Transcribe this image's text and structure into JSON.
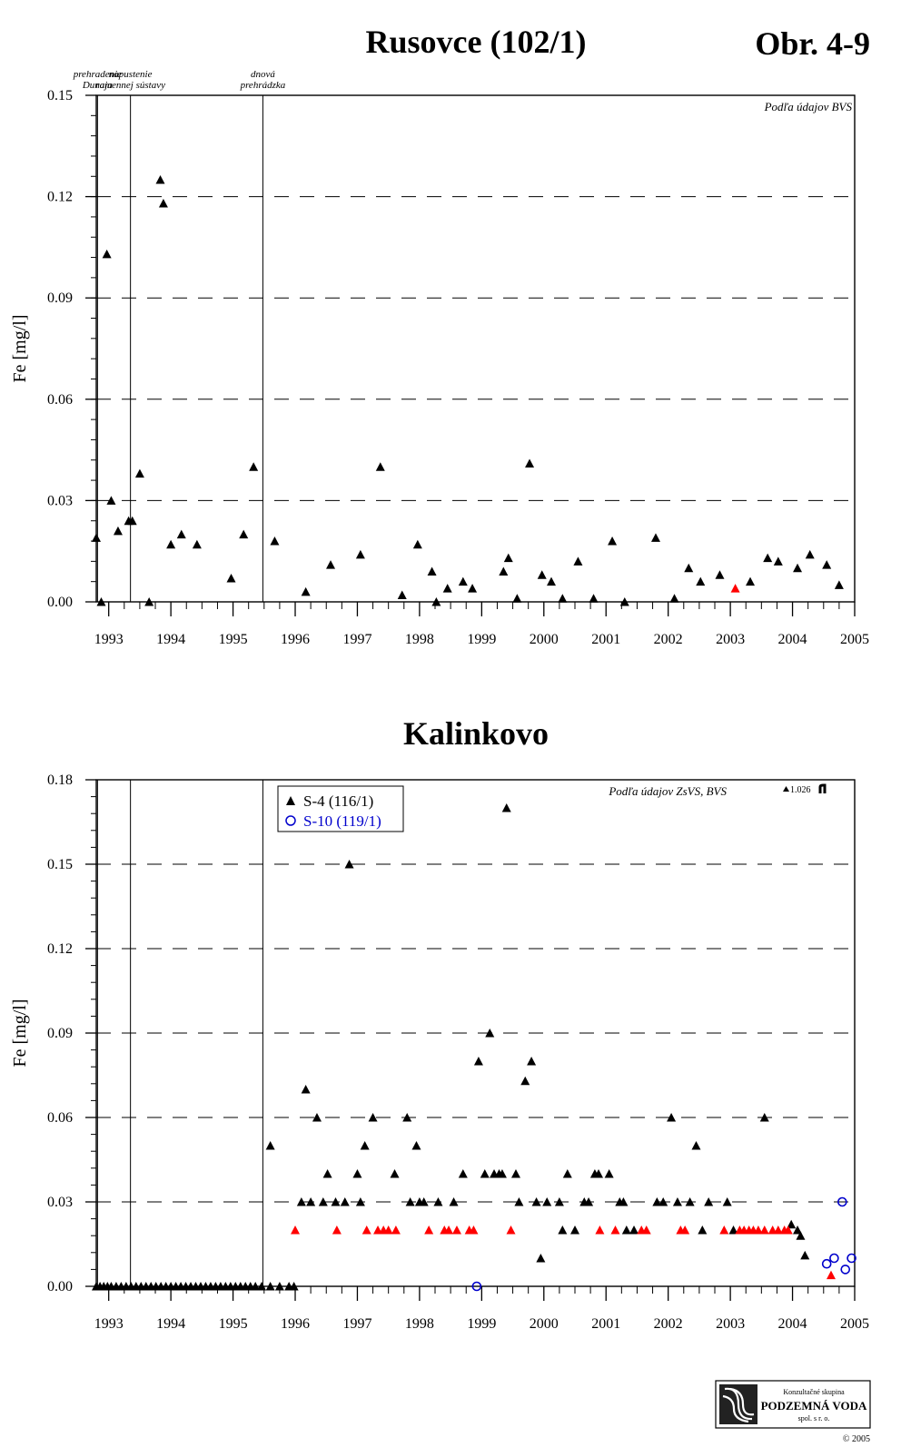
{
  "header": {
    "figure_label": "Obr. 4-9"
  },
  "colors": {
    "black": "#000000",
    "red": "#ff0000",
    "blue": "#0000cc"
  },
  "logo": {
    "line1": "Konzultačné skupina",
    "line2": "PODZEMNÁ VODA",
    "line3": "spol. s r. o.",
    "copyright": "© 2005",
    "icon": "company-logo-icon"
  },
  "chart_data": [
    {
      "type": "scatter",
      "title": "Rusovce (102/1)",
      "ylabel": "Fe [mg/l]",
      "xlabel": "",
      "source_note": "Podľa údajov BVS",
      "xlim": [
        1992.8,
        2005.0
      ],
      "ylim": [
        0,
        0.15
      ],
      "yticks": [
        "0.00",
        "0.03",
        "0.06",
        "0.09",
        "0.12",
        "0.15"
      ],
      "xticks": [
        "1993",
        "1994",
        "1995",
        "1996",
        "1997",
        "1998",
        "1999",
        "2000",
        "2001",
        "2002",
        "2003",
        "2004",
        "2005"
      ],
      "grid": "dashed horizontal",
      "events": [
        {
          "x": 1992.82,
          "label_lines": [
            "prehradenie",
            "Dunaja"
          ]
        },
        {
          "x": 1993.35,
          "label_lines": [
            "napustenie",
            "ramennej sústavy"
          ]
        },
        {
          "x": 1995.48,
          "label_lines": [
            "dnová",
            "prehrádzka"
          ]
        }
      ],
      "series": [
        {
          "marker": "triangle",
          "color": "#000000",
          "x": [
            1992.8,
            1992.88,
            1992.97,
            1993.04,
            1993.15,
            1993.32,
            1993.38,
            1993.5,
            1993.65,
            1993.83,
            1993.88,
            1994.0,
            1994.17,
            1994.42,
            1994.97,
            1995.17,
            1995.33,
            1995.67,
            1996.17,
            1996.57,
            1997.05,
            1997.37,
            1997.72,
            1997.97,
            1998.2,
            1998.27,
            1998.45,
            1998.7,
            1998.85,
            1999.35,
            1999.43,
            1999.57,
            1999.77,
            1999.97,
            2000.12,
            2000.3,
            2000.55,
            2000.8,
            2001.1,
            2001.3,
            2001.8,
            2002.1,
            2002.33,
            2002.52,
            2002.83,
            2003.32,
            2003.6,
            2003.77,
            2004.08,
            2004.28,
            2004.55,
            2004.75
          ],
          "y": [
            0.019,
            0.0,
            0.103,
            0.03,
            0.021,
            0.024,
            0.024,
            0.038,
            0.0,
            0.125,
            0.118,
            0.017,
            0.02,
            0.017,
            0.007,
            0.02,
            0.04,
            0.018,
            0.003,
            0.011,
            0.014,
            0.04,
            0.002,
            0.017,
            0.009,
            0.0,
            0.004,
            0.006,
            0.004,
            0.009,
            0.013,
            0.001,
            0.041,
            0.008,
            0.006,
            0.001,
            0.012,
            0.001,
            0.018,
            0.0,
            0.019,
            0.001,
            0.01,
            0.006,
            0.008,
            0.006,
            0.013,
            0.012,
            0.01,
            0.014,
            0.011,
            0.005
          ]
        },
        {
          "marker": "triangle",
          "color": "#ff0000",
          "x": [
            2003.08
          ],
          "y": [
            0.004
          ]
        }
      ]
    },
    {
      "type": "scatter",
      "title": "Kalinkovo",
      "ylabel": "Fe [mg/l]",
      "xlabel": "",
      "source_note": "Podľa údajov ZsVS, BVS",
      "outlier_note": "1.026",
      "xlim": [
        1992.8,
        2005.0
      ],
      "ylim": [
        0,
        0.18
      ],
      "yticks": [
        "0.00",
        "0.03",
        "0.06",
        "0.09",
        "0.12",
        "0.15",
        "0.18"
      ],
      "xticks": [
        "1993",
        "1994",
        "1995",
        "1996",
        "1997",
        "1998",
        "1999",
        "2000",
        "2001",
        "2002",
        "2003",
        "2004",
        "2005"
      ],
      "grid": "dashed horizontal",
      "events": [
        {
          "x": 1992.82,
          "label_lines": []
        },
        {
          "x": 1993.35,
          "label_lines": []
        },
        {
          "x": 1995.48,
          "label_lines": []
        }
      ],
      "legend": [
        {
          "label": "S-4 (116/1)",
          "marker": "triangle",
          "color": "#000000"
        },
        {
          "label": "S-10 (119/1)",
          "marker": "circle",
          "color": "#0000cc"
        }
      ],
      "series": [
        {
          "name": "S-4 (116/1)",
          "marker": "triangle",
          "color": "#000000",
          "x": [
            1992.8,
            1992.86,
            1992.92,
            1992.98,
            1993.04,
            1993.12,
            1993.2,
            1993.28,
            1993.36,
            1993.44,
            1993.52,
            1993.6,
            1993.68,
            1993.76,
            1993.84,
            1993.92,
            1994.0,
            1994.08,
            1994.16,
            1994.24,
            1994.32,
            1994.4,
            1994.48,
            1994.56,
            1994.64,
            1994.72,
            1994.8,
            1994.88,
            1994.96,
            1995.04,
            1995.12,
            1995.2,
            1995.28,
            1995.36,
            1995.46,
            1995.6,
            1995.75,
            1995.9,
            1995.98,
            1995.6,
            1996.1,
            1996.17,
            1996.25,
            1996.35,
            1996.45,
            1996.52,
            1996.65,
            1996.8,
            1996.87,
            1997.0,
            1997.05,
            1997.12,
            1997.25,
            1997.6,
            1997.8,
            1997.85,
            1997.95,
            1998.0,
            1998.07,
            1998.3,
            1998.55,
            1998.7,
            1998.95,
            1999.05,
            1999.13,
            1999.2,
            1999.28,
            1999.33,
            1999.4,
            1999.55,
            1999.6,
            1999.7,
            1999.8,
            1999.88,
            1999.95,
            2000.05,
            2000.25,
            2000.3,
            2000.38,
            2000.5,
            2000.65,
            2000.72,
            2000.82,
            2000.88,
            2001.05,
            2001.22,
            2001.28,
            2001.33,
            2001.45,
            2001.82,
            2001.92,
            2002.05,
            2002.15,
            2002.35,
            2002.45,
            2002.55,
            2002.65,
            2002.95,
            2003.05,
            2003.55,
            2003.98,
            2004.08,
            2004.13,
            2004.2
          ],
          "y": [
            0,
            0,
            0,
            0,
            0,
            0,
            0,
            0,
            0,
            0,
            0,
            0,
            0,
            0,
            0,
            0,
            0,
            0,
            0,
            0,
            0,
            0,
            0,
            0,
            0,
            0,
            0,
            0,
            0,
            0,
            0,
            0,
            0,
            0,
            0,
            0,
            0,
            0,
            0,
            0.05,
            0.03,
            0.07,
            0.03,
            0.06,
            0.03,
            0.04,
            0.03,
            0.03,
            0.15,
            0.04,
            0.03,
            0.05,
            0.06,
            0.04,
            0.06,
            0.03,
            0.05,
            0.03,
            0.03,
            0.03,
            0.03,
            0.04,
            0.08,
            0.04,
            0.09,
            0.04,
            0.04,
            0.04,
            0.17,
            0.04,
            0.03,
            0.073,
            0.08,
            0.03,
            0.01,
            0.03,
            0.03,
            0.02,
            0.04,
            0.02,
            0.03,
            0.03,
            0.04,
            0.04,
            0.04,
            0.03,
            0.03,
            0.02,
            0.02,
            0.03,
            0.03,
            0.06,
            0.03,
            0.03,
            0.05,
            0.02,
            0.03,
            0.03,
            0.02,
            0.06,
            0.022,
            0.02,
            0.018,
            0.011
          ]
        },
        {
          "name": "S-4 (116/1)",
          "marker": "triangle",
          "color": "#ff0000",
          "x": [
            1996.0,
            1996.67,
            1997.15,
            1997.33,
            1997.42,
            1997.5,
            1997.62,
            1998.15,
            1998.4,
            1998.47,
            1998.6,
            1998.8,
            1998.87,
            1999.47,
            2000.9,
            2001.15,
            2001.57,
            2001.65,
            2002.2,
            2002.27,
            2002.9,
            2003.15,
            2003.22,
            2003.3,
            2003.37,
            2003.45,
            2003.55,
            2003.68,
            2003.77,
            2003.87,
            2003.93,
            2004.62
          ],
          "y": [
            0.02,
            0.02,
            0.02,
            0.02,
            0.02,
            0.02,
            0.02,
            0.02,
            0.02,
            0.02,
            0.02,
            0.02,
            0.02,
            0.02,
            0.02,
            0.02,
            0.02,
            0.02,
            0.02,
            0.02,
            0.02,
            0.02,
            0.02,
            0.02,
            0.02,
            0.02,
            0.02,
            0.02,
            0.02,
            0.02,
            0.02,
            0.004
          ]
        },
        {
          "name": "S-10 (119/1)",
          "marker": "circle",
          "color": "#0000cc",
          "x": [
            1998.92,
            2004.55,
            2004.67,
            2004.8,
            2004.85,
            2004.95
          ],
          "y": [
            0.0,
            0.008,
            0.01,
            0.03,
            0.006,
            0.01
          ]
        }
      ]
    }
  ]
}
